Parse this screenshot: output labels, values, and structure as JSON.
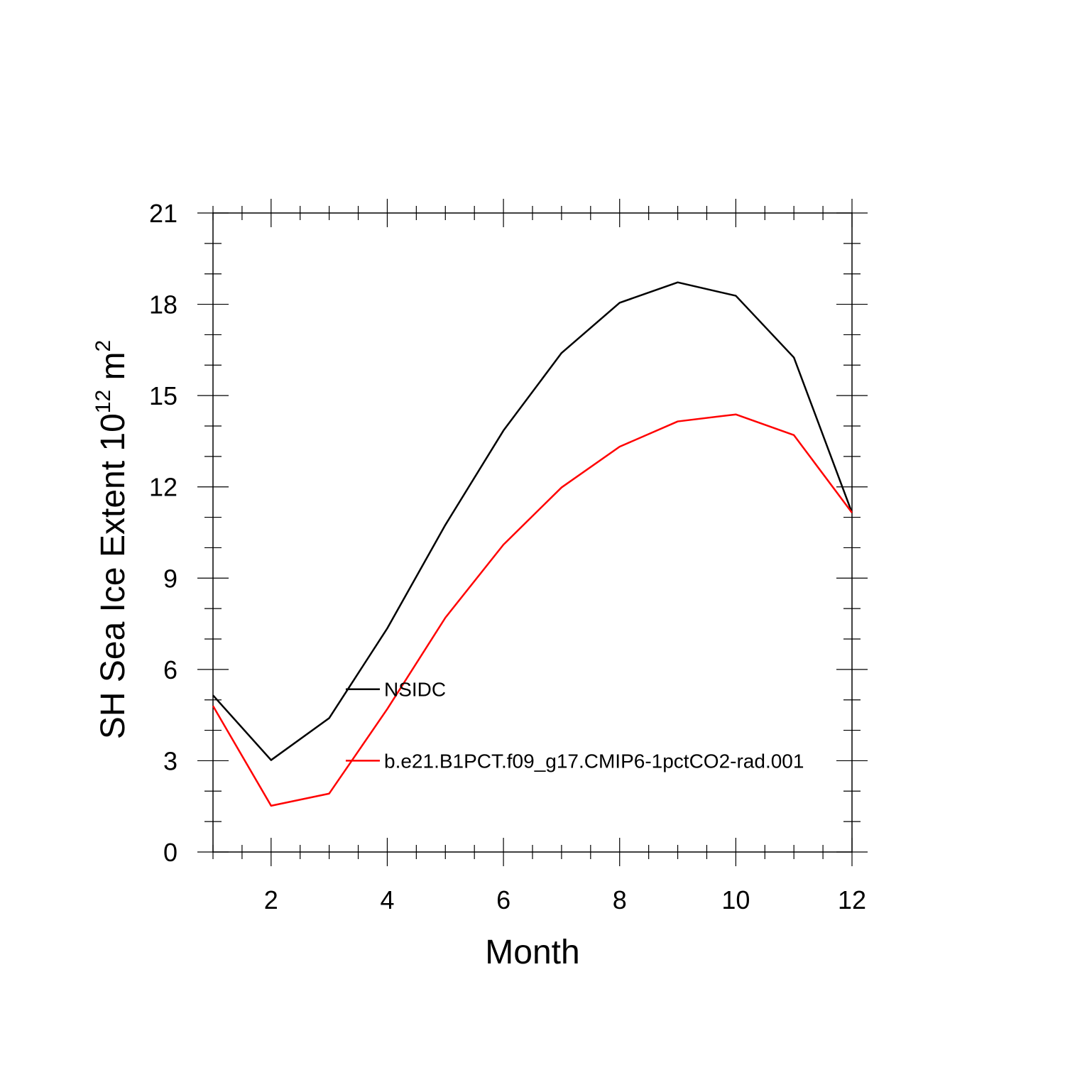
{
  "chart_data": {
    "type": "line",
    "xlabel": "Month",
    "ylabel": "SH Sea Ice Extent 10",
    "ylabel_sup": "12",
    "ylabel_unit": " m",
    "ylabel_unit_sup": "2",
    "xlim": [
      1,
      12
    ],
    "ylim": [
      0,
      21
    ],
    "x_major_ticks": [
      2,
      4,
      6,
      8,
      10,
      12
    ],
    "x_minor_step": 0.5,
    "y_major_ticks": [
      0,
      3,
      6,
      9,
      12,
      15,
      18,
      21
    ],
    "y_minor_step": 1,
    "grid": false,
    "x": [
      1,
      2,
      3,
      4,
      5,
      6,
      7,
      8,
      9,
      10,
      11,
      12
    ],
    "series": [
      {
        "name": "NSIDC",
        "color": "#000000",
        "values": [
          5.15,
          3.02,
          4.4,
          7.35,
          10.75,
          13.85,
          16.4,
          18.05,
          18.72,
          18.28,
          16.25,
          11.15
        ]
      },
      {
        "name": "b.e21.B1PCT.f09_g17.CMIP6-1pctCO2-rad.001",
        "color": "#ff0000",
        "values": [
          4.8,
          1.52,
          1.92,
          4.7,
          7.7,
          10.1,
          11.98,
          13.32,
          14.15,
          14.38,
          13.7,
          11.15
        ]
      }
    ],
    "legend_position": "inside, lower-left of center"
  }
}
